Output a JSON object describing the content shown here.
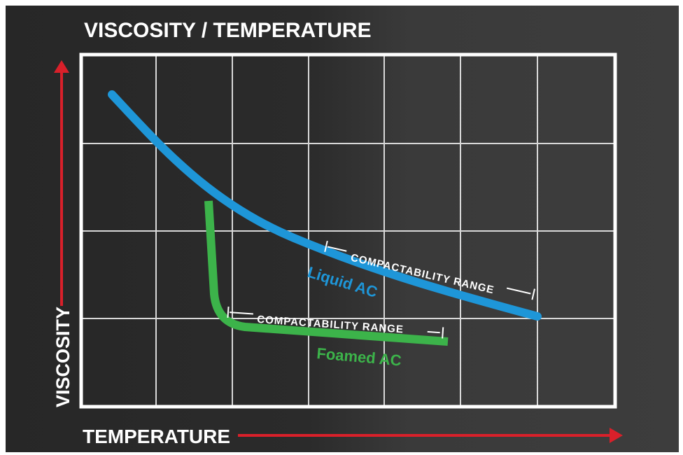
{
  "title": "VISCOSITY / TEMPERATURE",
  "y_axis_label": "VISCOSITY",
  "x_axis_label": "TEMPERATURE",
  "curves": [
    {
      "label": "Liquid AC",
      "range_label": "COMPACTABILITY RANGE"
    },
    {
      "label": "Foamed AC",
      "range_label": "COMPACTABILITY RANGE"
    }
  ]
}
